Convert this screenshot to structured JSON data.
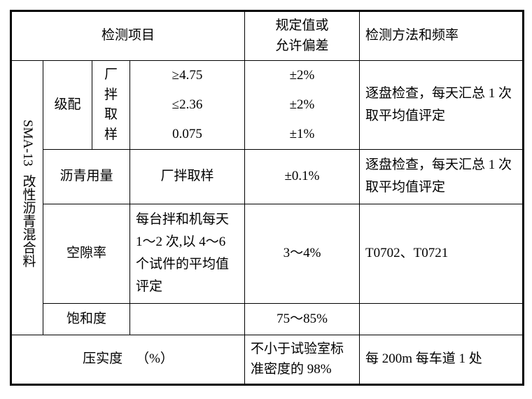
{
  "header": {
    "col_item": "检测项目",
    "col_tolerance_line1": "规定值或",
    "col_tolerance_line2": "允许偏差",
    "col_method": "检测方法和频率"
  },
  "side": {
    "sma_label": "SMA-13",
    "material": "改性沥青混合料"
  },
  "rows": {
    "gradation": {
      "label": "级配",
      "sampling_l1": "厂拌",
      "sampling_l2": "取样",
      "sizes": [
        "≥4.75",
        "≤2.36",
        "0.075"
      ],
      "tolerances": [
        "±2%",
        "±2%",
        "±1%"
      ],
      "method": "逐盘检查，每天汇总 1 次取平均值评定"
    },
    "asphalt": {
      "label": "沥青用量",
      "spec": "厂拌取样",
      "tolerance": "±0.1%",
      "method": "逐盘检查，每天汇总 1 次取平均值评定"
    },
    "voids": {
      "label": "空隙率",
      "spec": "每台拌和机每天 1～2 次,以 4～6 个试件的平均值评定",
      "tolerance": "3～4%",
      "method": "T0702、T0721"
    },
    "saturation": {
      "label": "饱和度",
      "tolerance": "75～85%"
    },
    "compaction": {
      "label": "压实度 （%）",
      "tolerance": "不小于试验室标准密度的 98%",
      "method": "每 200m 每车道 1 处"
    }
  }
}
